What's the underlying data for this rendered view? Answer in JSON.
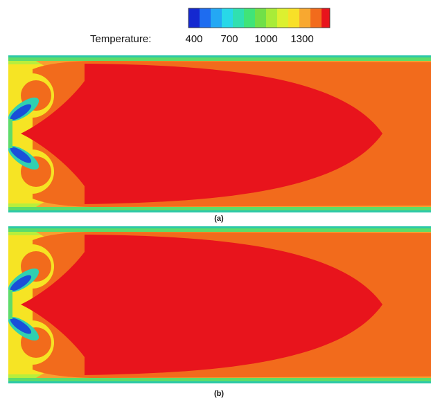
{
  "colorbar": {
    "label": "Temperature:",
    "ticks": [
      "400",
      "700",
      "1000",
      "1300"
    ]
  },
  "panels": [
    {
      "label": "(a)"
    },
    {
      "label": "(b)"
    }
  ]
}
